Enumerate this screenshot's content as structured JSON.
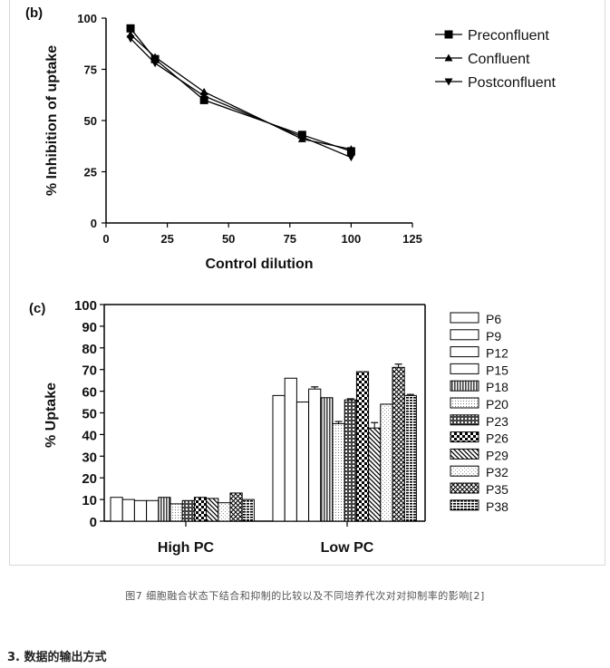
{
  "caption": "图7 细胞融合状态下结合和抑制的比较以及不同培养代次对对抑制率的影响[2]",
  "section_heading": "3. 数据的输出方式",
  "chart_data": [
    {
      "panel_label": "(b)",
      "type": "line",
      "xlabel": "Control dilution",
      "ylabel": "% Inhibition of uptake",
      "xlim": [
        0,
        125
      ],
      "ylim": [
        0,
        100
      ],
      "xticks": [
        0,
        25,
        50,
        75,
        100,
        125
      ],
      "yticks": [
        0,
        25,
        50,
        75,
        100
      ],
      "legend_position": "right",
      "series": [
        {
          "name": "Preconfluent",
          "marker": "square",
          "x": [
            10,
            20,
            40,
            80,
            100
          ],
          "y": [
            95,
            80,
            60,
            43,
            35
          ]
        },
        {
          "name": "Confluent",
          "marker": "triangle-up",
          "x": [
            10,
            20,
            40,
            80,
            100
          ],
          "y": [
            92,
            81,
            64,
            41,
            36
          ]
        },
        {
          "name": "Postconfluent",
          "marker": "triangle-down",
          "x": [
            10,
            20,
            40,
            80,
            100
          ],
          "y": [
            90,
            78,
            62,
            42,
            32
          ]
        }
      ]
    },
    {
      "panel_label": "(c)",
      "type": "bar",
      "ylabel": "% Uptake",
      "ylim": [
        0,
        100
      ],
      "yticks": [
        0,
        10,
        20,
        30,
        40,
        50,
        60,
        70,
        80,
        90,
        100
      ],
      "categories": [
        "High PC",
        "Low PC"
      ],
      "legend_position": "right",
      "series": [
        {
          "name": "P6",
          "pattern": "white",
          "values": [
            11,
            58
          ],
          "errors": [
            0,
            0
          ]
        },
        {
          "name": "P9",
          "pattern": "white",
          "values": [
            10,
            66
          ],
          "errors": [
            0,
            0
          ]
        },
        {
          "name": "P12",
          "pattern": "white",
          "values": [
            9.5,
            55
          ],
          "errors": [
            0,
            0
          ]
        },
        {
          "name": "P15",
          "pattern": "white",
          "values": [
            9.5,
            61
          ],
          "errors": [
            0,
            1
          ]
        },
        {
          "name": "P18",
          "pattern": "vert-hatch",
          "values": [
            11,
            57
          ],
          "errors": [
            0,
            0
          ]
        },
        {
          "name": "P20",
          "pattern": "fine-dots",
          "values": [
            8,
            45
          ],
          "errors": [
            0,
            1
          ]
        },
        {
          "name": "P23",
          "pattern": "grid",
          "values": [
            9.5,
            56
          ],
          "errors": [
            0,
            0.5
          ]
        },
        {
          "name": "P26",
          "pattern": "checker",
          "values": [
            11,
            69
          ],
          "errors": [
            0,
            0
          ]
        },
        {
          "name": "P29",
          "pattern": "diag",
          "values": [
            10.5,
            43
          ],
          "errors": [
            0,
            2.5
          ]
        },
        {
          "name": "P32",
          "pattern": "light-dots",
          "values": [
            8.5,
            54
          ],
          "errors": [
            0,
            0
          ]
        },
        {
          "name": "P35",
          "pattern": "crosshatch",
          "values": [
            13,
            71
          ],
          "errors": [
            0,
            1.5
          ]
        },
        {
          "name": "P38",
          "pattern": "horiz-dashes",
          "values": [
            10,
            58
          ],
          "errors": [
            0,
            0.5
          ]
        }
      ]
    }
  ]
}
